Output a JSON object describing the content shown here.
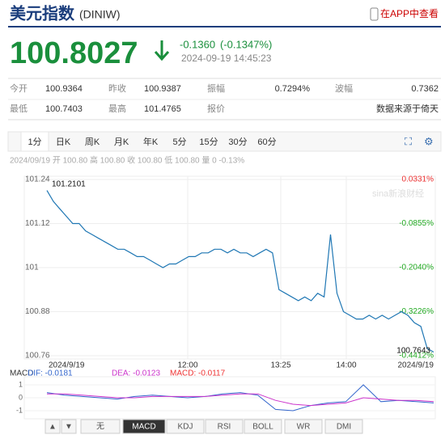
{
  "header": {
    "title": "美元指数",
    "code": "(DINIW)",
    "app_link": "在APP中查看"
  },
  "quote": {
    "price": "100.8027",
    "change": "-0.1360",
    "change_pct": "(-0.1347%)",
    "time": "2024-09-19 14:45:23"
  },
  "stats": [
    [
      "今开",
      "100.9364",
      "昨收",
      "100.9387",
      "振幅",
      "0.7294%",
      "波幅",
      "0.7362"
    ],
    [
      "最低",
      "100.7403",
      "最高",
      "101.4765",
      "报价",
      "数据来源于倚天"
    ]
  ],
  "tabs": [
    "1分",
    "日K",
    "周K",
    "月K",
    "年K",
    "5分",
    "15分",
    "30分",
    "60分"
  ],
  "info_line": "2024/09/19 开 100.80 高 100.80 收 100.80 低 100.80 量 0 -0.13%",
  "price_chart": {
    "type": "line",
    "color": "#1f77b4",
    "values": [
      101.21,
      101.18,
      101.16,
      101.14,
      101.12,
      101.12,
      101.1,
      101.09,
      101.08,
      101.07,
      101.06,
      101.05,
      101.05,
      101.04,
      101.03,
      101.03,
      101.02,
      101.01,
      101.0,
      101.01,
      101.01,
      101.02,
      101.03,
      101.03,
      101.04,
      101.04,
      101.05,
      101.05,
      101.04,
      101.05,
      101.04,
      101.04,
      101.03,
      101.04,
      101.05,
      101.04,
      100.94,
      100.93,
      100.92,
      100.91,
      100.92,
      100.91,
      100.93,
      100.92,
      101.09,
      100.93,
      100.88,
      100.87,
      100.86,
      100.86,
      100.87,
      100.86,
      100.87,
      100.86,
      100.87,
      100.88,
      100.87,
      100.85,
      100.84,
      100.78,
      100.77
    ],
    "ylim": [
      100.76,
      101.24
    ],
    "yticks": [
      101.24,
      101.12,
      101,
      100.88,
      100.76
    ],
    "y2ticks": [
      {
        "value": 0.0331,
        "label": "0.0331%"
      },
      {
        "value": -0.0855,
        "label": "-0.0855%"
      },
      {
        "value": -0.204,
        "label": "-0.2040%"
      },
      {
        "value": -0.3226,
        "label": "-0.3226%"
      },
      {
        "value": -0.4412,
        "label": "-0.4412%"
      }
    ],
    "xlabels": [
      "2024/9/19",
      "12:00",
      "13:25",
      "14:00",
      "2024/9/19"
    ],
    "high_label": "101.2101",
    "low_label": "100.7643"
  },
  "macd": {
    "label": "MACD",
    "dif_label": "DIF: -0.0181",
    "dea_label": "DEA: -0.0123",
    "macd_label": "MACD: -0.0117",
    "ylim": [
      -1.5,
      1.5
    ],
    "yticks": [
      1,
      0,
      -1
    ],
    "dif": [
      0.4,
      0.2,
      0.1,
      0.0,
      -0.1,
      0.1,
      0.2,
      0.1,
      0.0,
      0.1,
      0.3,
      0.4,
      0.2,
      -0.9,
      -1.0,
      -0.6,
      -0.4,
      -0.3,
      1.0,
      -0.3,
      -0.2,
      -0.3,
      -0.4
    ],
    "dea": [
      0.3,
      0.3,
      0.2,
      0.1,
      0.0,
      0.0,
      0.1,
      0.1,
      0.1,
      0.1,
      0.2,
      0.3,
      0.3,
      -0.2,
      -0.5,
      -0.6,
      -0.5,
      -0.4,
      0.0,
      -0.1,
      -0.2,
      -0.2,
      -0.3
    ]
  },
  "bottom_tabs": [
    "▲",
    "▼",
    "无",
    "MACD",
    "KDJ",
    "RSI",
    "BOLL",
    "WR",
    "DMI"
  ]
}
